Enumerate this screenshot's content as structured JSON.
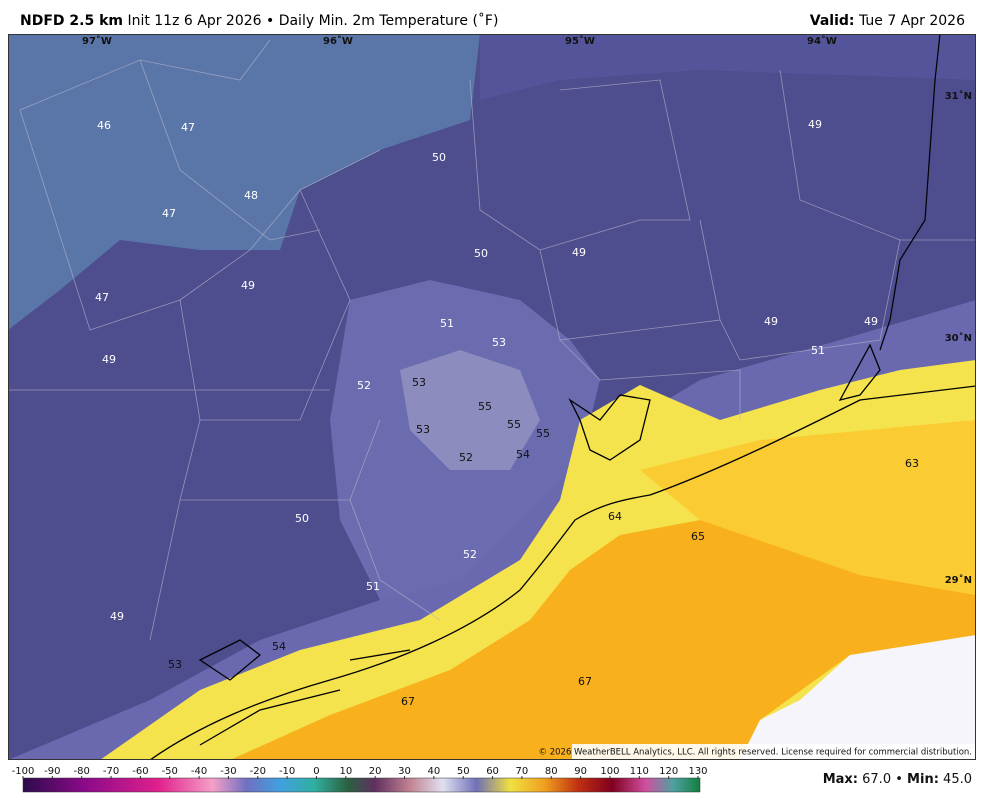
{
  "header": {
    "model": "NDFD 2.5 km",
    "description": "Init 11z 6 Apr 2026 • Daily Min. 2m Temperature (˚F)",
    "valid_label": "Valid:",
    "valid": "Tue 7 Apr 2026"
  },
  "longitude_labels": [
    "97˚W",
    "96˚W",
    "95˚W",
    "94˚W"
  ],
  "latitude_labels": [
    "31˚N",
    "30˚N",
    "29˚N"
  ],
  "temperature_labels": [
    46,
    47,
    50,
    49,
    48,
    47,
    50,
    49,
    47,
    49,
    51,
    53,
    49,
    49,
    51,
    49,
    52,
    53,
    55,
    55,
    55,
    53,
    52,
    54,
    63,
    64,
    65,
    50,
    52,
    51,
    49,
    54,
    53,
    67,
    67
  ],
  "copyright": "© 2026 WeatherBELL Analytics, LLC. All rights reserved. License required for commercial distribution.",
  "colorbar": {
    "ticks": [
      -100,
      -90,
      -80,
      -70,
      -60,
      -50,
      -40,
      -30,
      -20,
      -10,
      0,
      10,
      20,
      30,
      40,
      50,
      60,
      70,
      80,
      90,
      100,
      110,
      120,
      130
    ]
  },
  "stats": {
    "max_label": "Max:",
    "max": "67.0",
    "separator": "•",
    "min_label": "Min:",
    "min": "45.0"
  }
}
